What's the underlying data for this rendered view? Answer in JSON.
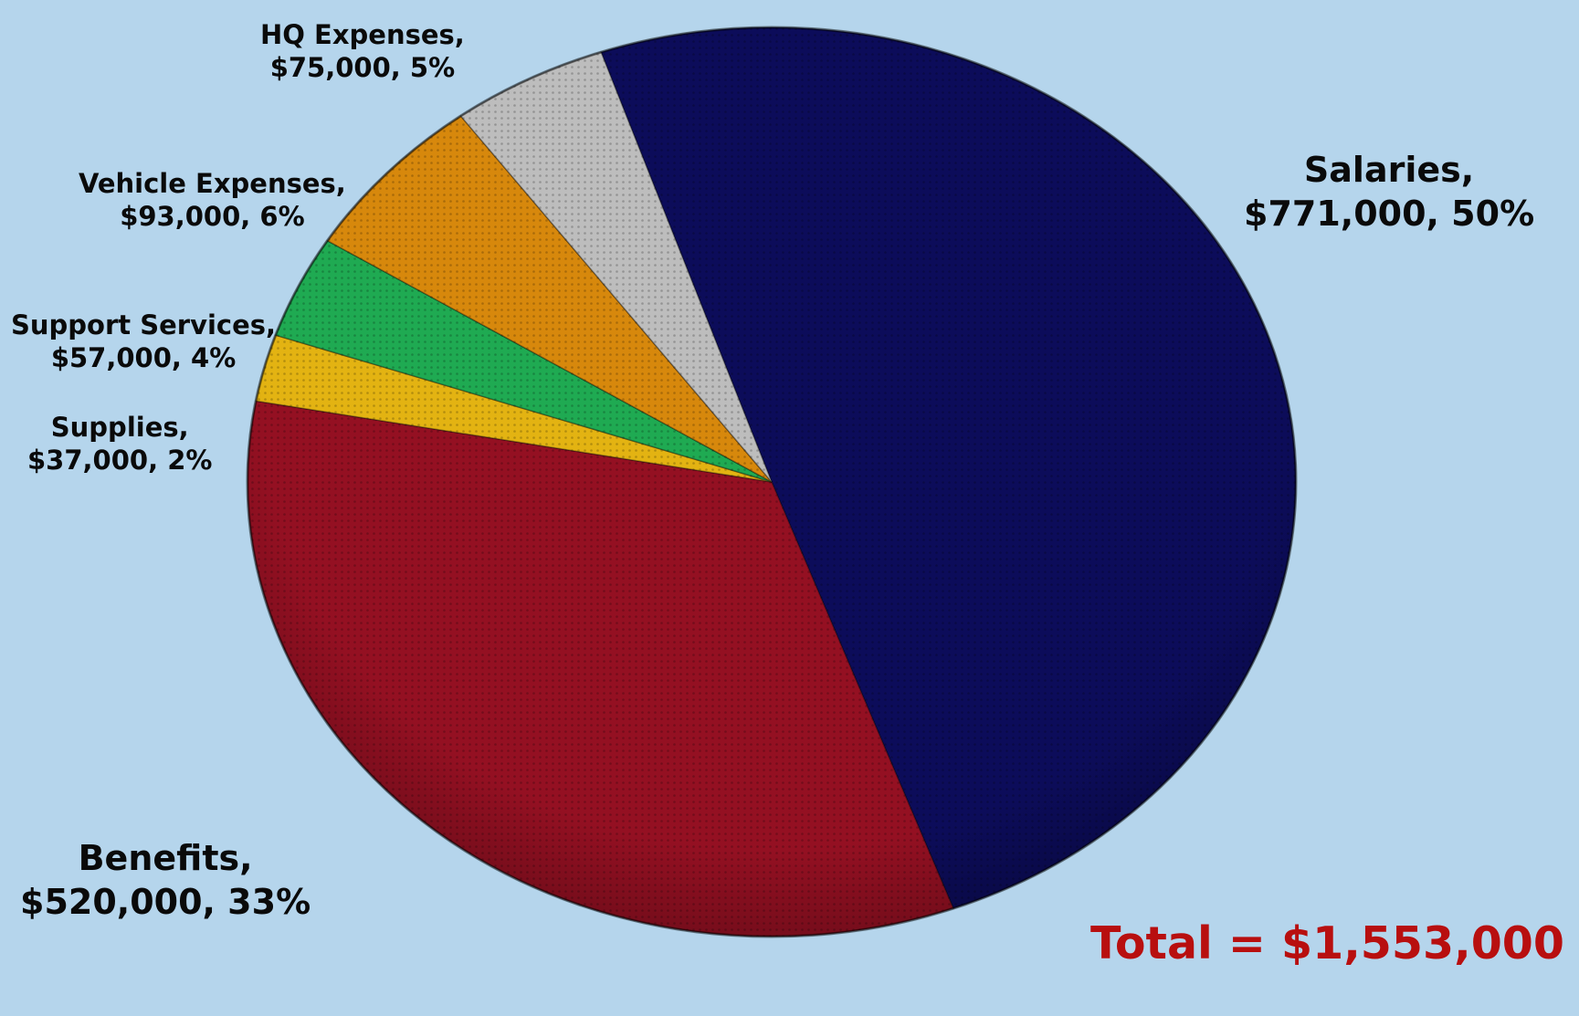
{
  "chart_data": {
    "type": "pie",
    "start_angle_deg": -109,
    "direction": "clockwise",
    "total_label": "Total = $1,553,000",
    "slices": [
      {
        "name": "Salaries",
        "value": 771000,
        "percent": 50,
        "color": "#0c0c5a",
        "label_line1": "Salaries,",
        "label_line2": "$771,000, 50%"
      },
      {
        "name": "Benefits",
        "value": 520000,
        "percent": 33,
        "color": "#941022",
        "label_line1": "Benefits,",
        "label_line2": "$520,000, 33%"
      },
      {
        "name": "Supplies",
        "value": 37000,
        "percent": 2,
        "color": "#e3b312",
        "label_line1": "Supplies,",
        "label_line2": "$37,000, 2%"
      },
      {
        "name": "Support Services",
        "value": 57000,
        "percent": 4,
        "color": "#1faa52",
        "label_line1": "Support Services,",
        "label_line2": "$57,000, 4%"
      },
      {
        "name": "Vehicle Expenses",
        "value": 93000,
        "percent": 6,
        "color": "#d7880c",
        "label_line1": "Vehicle Expenses,",
        "label_line2": "$93,000, 6%"
      },
      {
        "name": "HQ Expenses",
        "value": 75000,
        "percent": 5,
        "color": "#bdbdbd",
        "label_line1": "HQ Expenses,",
        "label_line2": "$75,000, 5%"
      }
    ]
  }
}
